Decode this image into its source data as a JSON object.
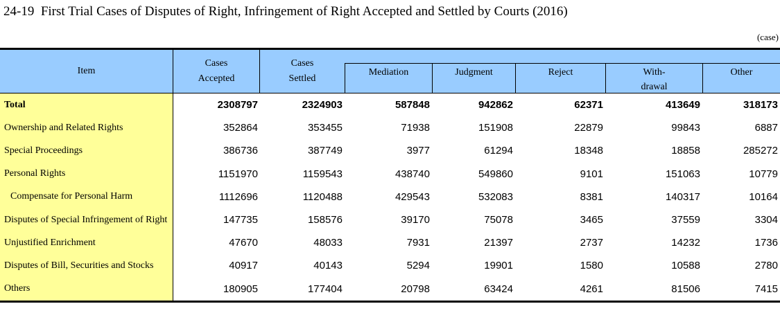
{
  "title": "24-19  First Trial Cases of Disputes of Right, Infringement of Right Accepted and Settled by Courts (2016)",
  "unit_label": "(case)",
  "colors": {
    "header_bg": "#99CCFF",
    "item_column_bg": "#FFFF99",
    "border": "#000000"
  },
  "table": {
    "header": {
      "item": "Item",
      "cases_accepted": "Cases\nAccepted",
      "cases_settled": "Cases\nSettled",
      "sub_columns": [
        "Mediation",
        "Judgment",
        "Reject",
        "With-\ndrawal",
        "Other"
      ]
    },
    "rows": [
      {
        "label": "Total",
        "bold": true,
        "indent": false,
        "values": [
          2308797,
          2324903,
          587848,
          942862,
          62371,
          413649,
          318173
        ]
      },
      {
        "label": "Ownership and Related Rights",
        "bold": false,
        "indent": false,
        "values": [
          352864,
          353455,
          71938,
          151908,
          22879,
          99843,
          6887
        ]
      },
      {
        "label": "Special Proceedings",
        "bold": false,
        "indent": false,
        "values": [
          386736,
          387749,
          3977,
          61294,
          18348,
          18858,
          285272
        ]
      },
      {
        "label": "Personal Rights",
        "bold": false,
        "indent": false,
        "values": [
          1151970,
          1159543,
          438740,
          549860,
          9101,
          151063,
          10779
        ]
      },
      {
        "label": "Compensate for Personal Harm",
        "bold": false,
        "indent": true,
        "values": [
          1112696,
          1120488,
          429543,
          532083,
          8381,
          140317,
          10164
        ]
      },
      {
        "label": "Disputes of Special Infringement of Right",
        "bold": false,
        "indent": false,
        "values": [
          147735,
          158576,
          39170,
          75078,
          3465,
          37559,
          3304
        ]
      },
      {
        "label": "Unjustified Enrichment",
        "bold": false,
        "indent": false,
        "values": [
          47670,
          48033,
          7931,
          21397,
          2737,
          14232,
          1736
        ]
      },
      {
        "label": "Disputes of Bill, Securities and Stocks",
        "bold": false,
        "indent": false,
        "values": [
          40917,
          40143,
          5294,
          19901,
          1580,
          10588,
          2780
        ]
      },
      {
        "label": "Others",
        "bold": false,
        "indent": false,
        "values": [
          180905,
          177404,
          20798,
          63424,
          4261,
          81506,
          7415
        ]
      }
    ]
  }
}
